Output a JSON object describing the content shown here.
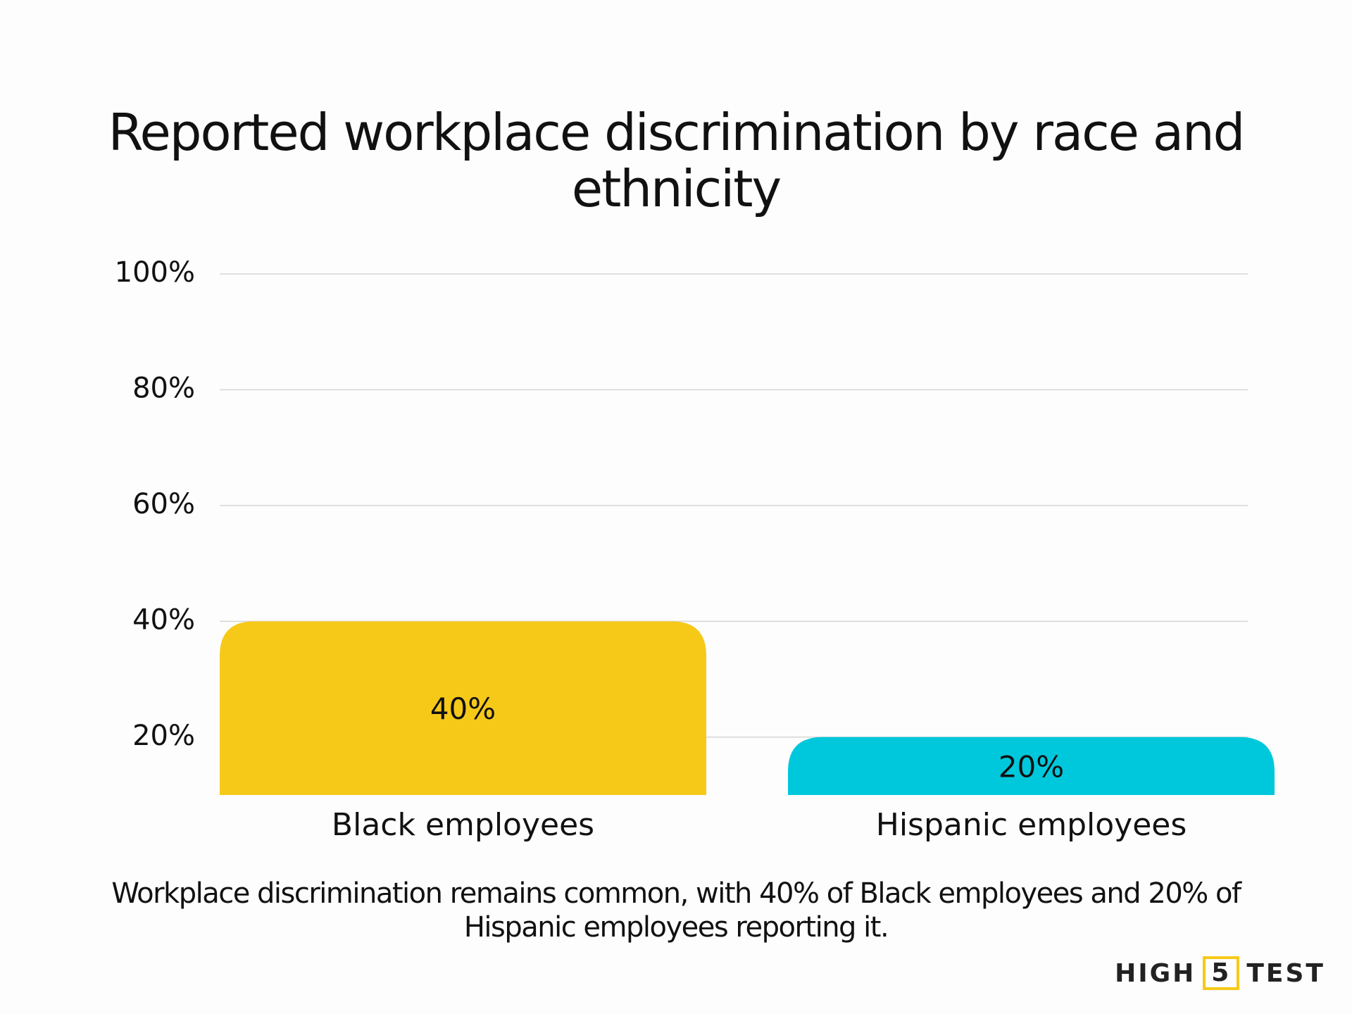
{
  "chart_data": {
    "type": "bar",
    "title": "Reported workplace discrimination by race and ethnicity",
    "categories": [
      "Black employees",
      "Hispanic employees"
    ],
    "values": [
      40,
      20
    ],
    "value_labels": [
      "40%",
      "20%"
    ],
    "colors": [
      "#f6c919",
      "#00c8dc"
    ],
    "ylim": [
      10,
      100
    ],
    "yticks": [
      {
        "value": 20,
        "label": "20%"
      },
      {
        "value": 40,
        "label": "40%"
      },
      {
        "value": 60,
        "label": "60%"
      },
      {
        "value": 80,
        "label": "80%"
      },
      {
        "value": 100,
        "label": "100%"
      }
    ],
    "grid": true,
    "caption": "Workplace discrimination remains common, with 40% of Black employees and 20% of Hispanic employees reporting it."
  },
  "logo": {
    "left": "HIGH",
    "middle": "5",
    "right": "TEST"
  }
}
